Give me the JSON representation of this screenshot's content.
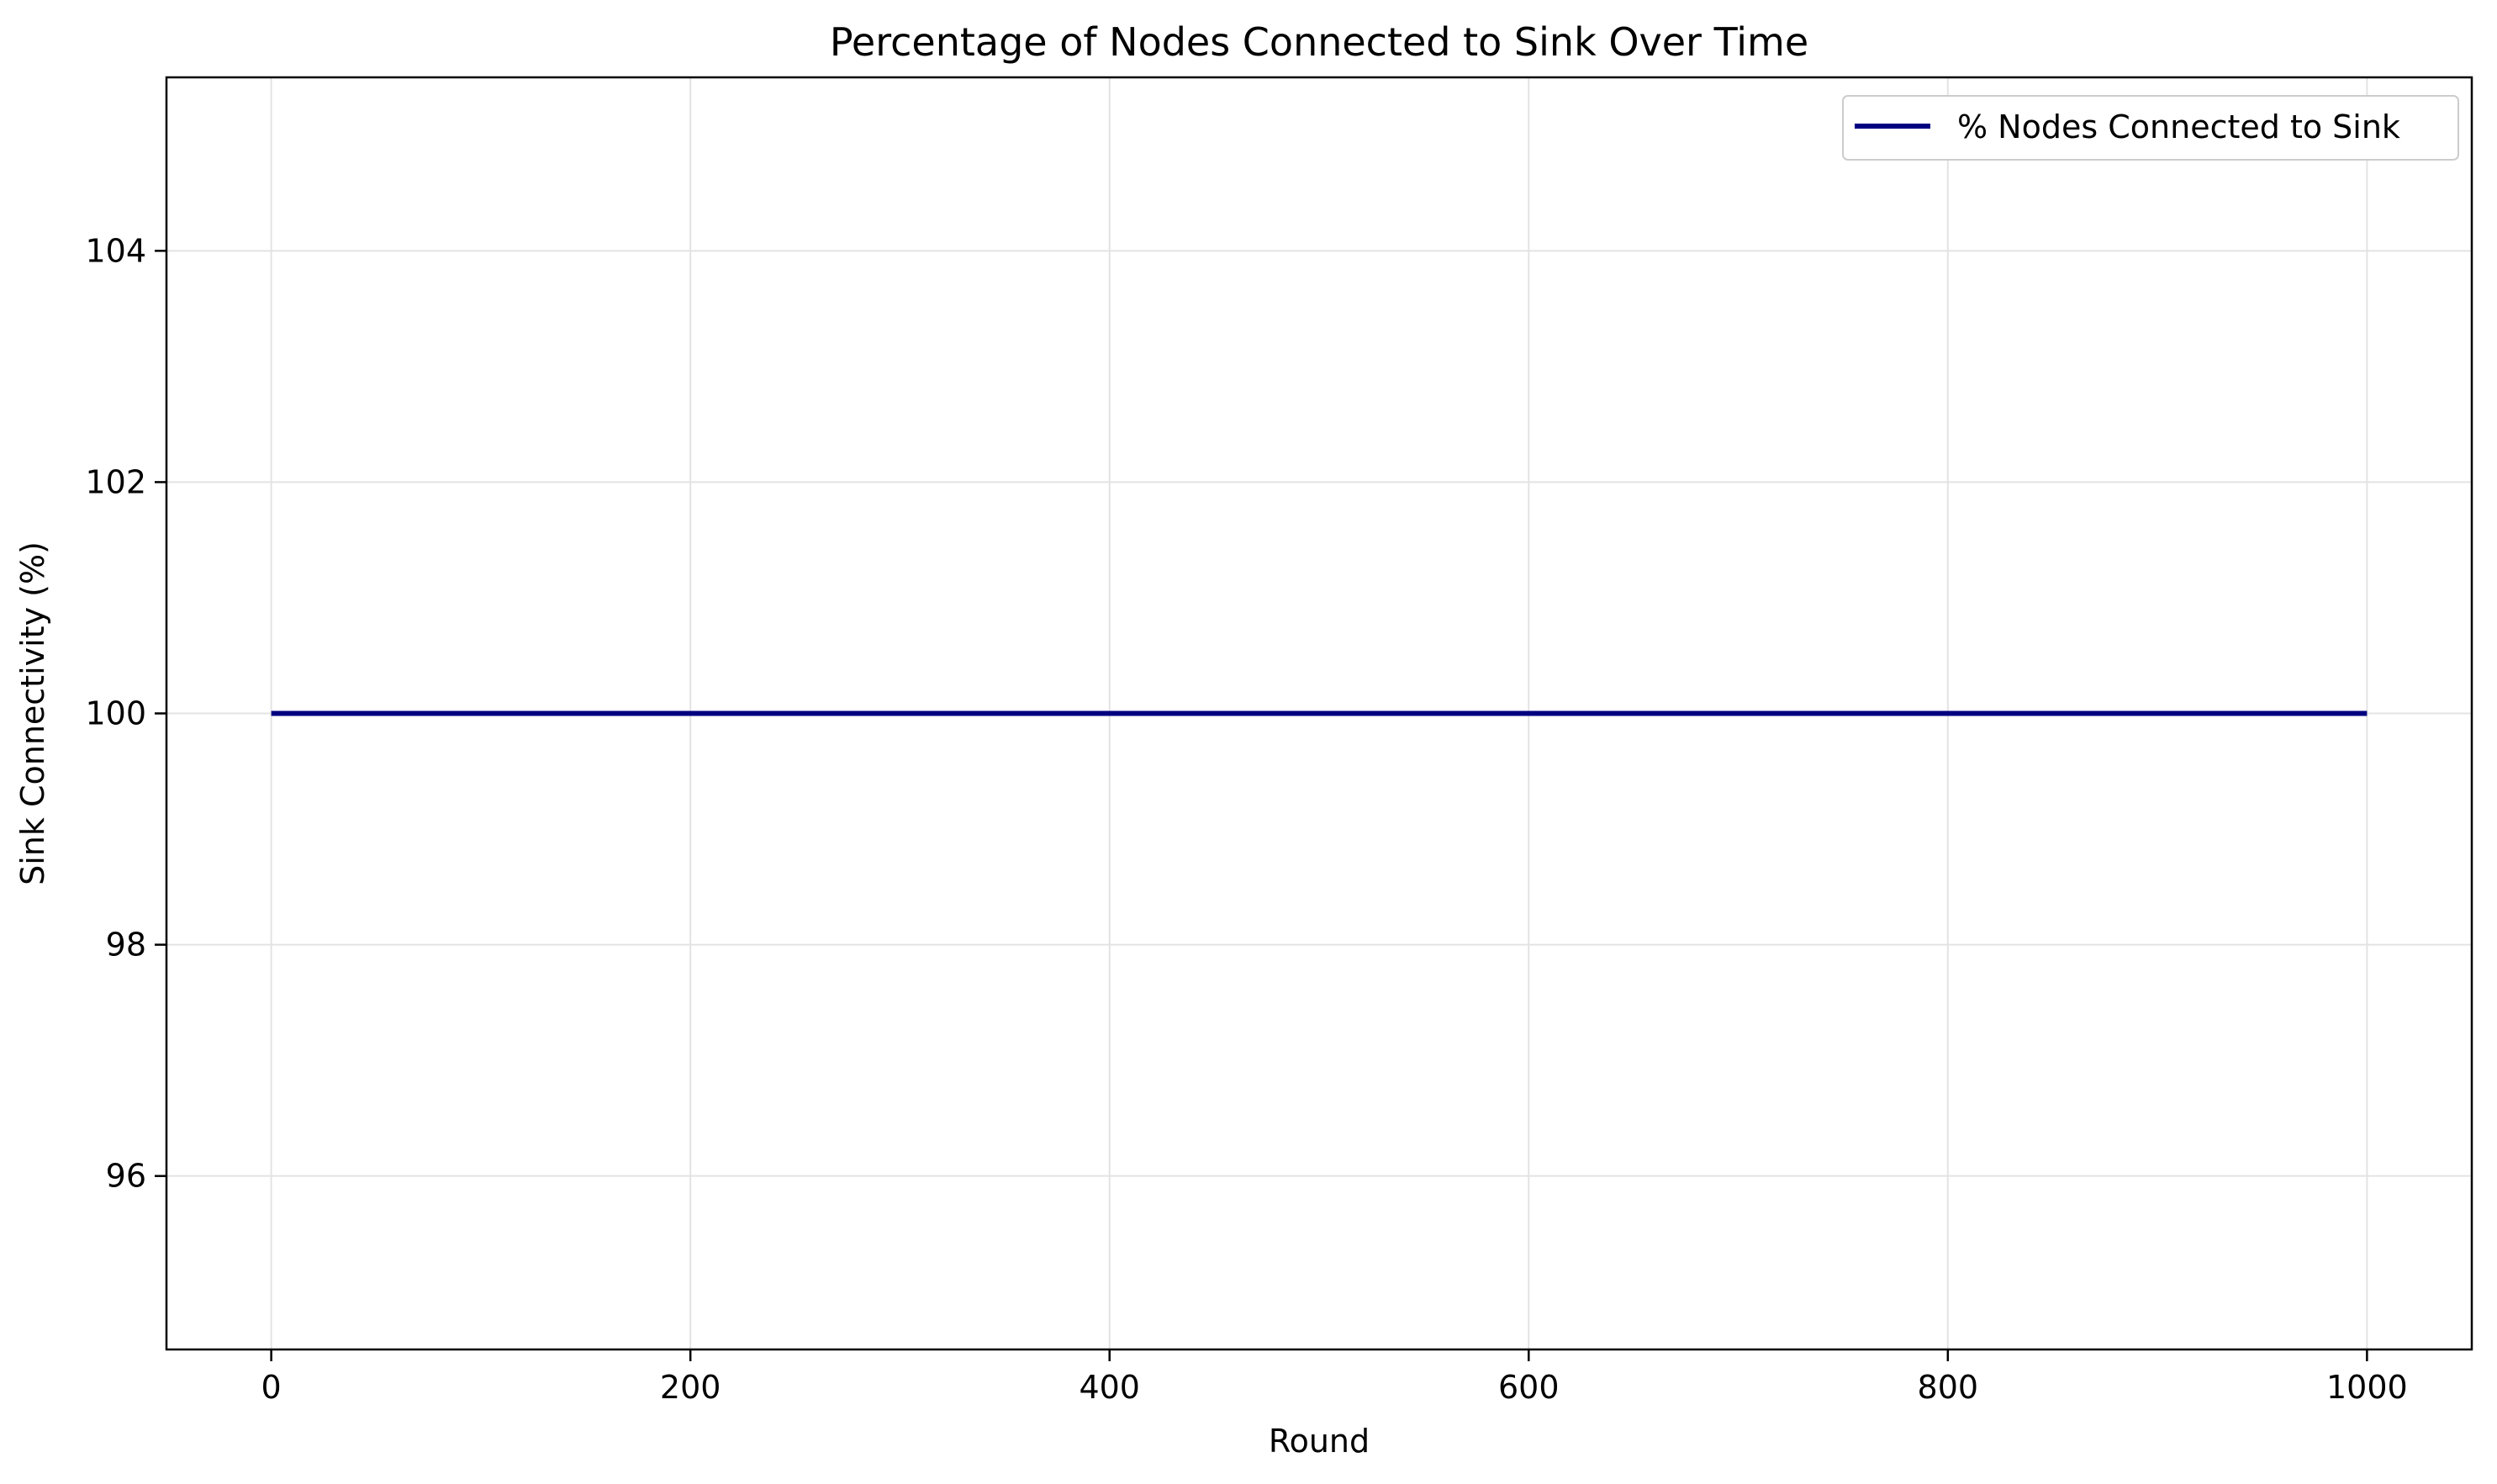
{
  "chart_data": {
    "type": "line",
    "title": "Percentage of Nodes Connected to Sink Over Time",
    "xlabel": "Round",
    "ylabel": "Sink Connectivity (%)",
    "xlim": [
      -50,
      1050
    ],
    "ylim": [
      94.5,
      105.5
    ],
    "xticks": [
      0,
      200,
      400,
      600,
      800,
      1000
    ],
    "yticks": [
      96,
      98,
      100,
      102,
      104
    ],
    "grid": true,
    "legend_position": "top-right",
    "series": [
      {
        "name": "% Nodes Connected to Sink",
        "color": "#000080",
        "x": [
          0,
          1000
        ],
        "y": [
          100,
          100
        ]
      }
    ]
  }
}
